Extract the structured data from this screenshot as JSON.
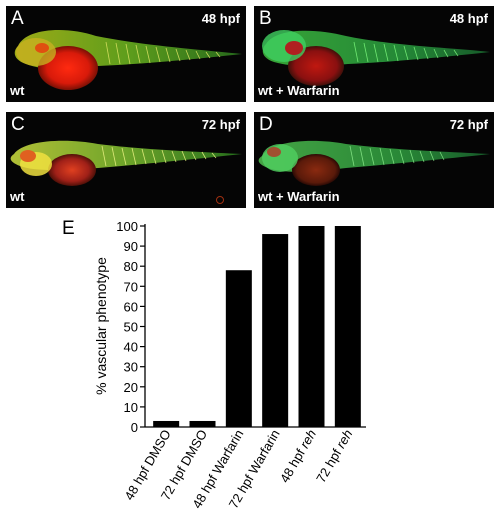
{
  "panels": [
    {
      "letter": "A",
      "time": "48 hpf",
      "condition": "wt",
      "fish": "fish-wt-48",
      "bg": "#050505"
    },
    {
      "letter": "B",
      "time": "48 hpf",
      "condition": "wt + Warfarin",
      "fish": "fish-warfarin-48",
      "bg": "#050505"
    },
    {
      "letter": "C",
      "time": "72 hpf",
      "condition": "wt",
      "fish": "fish-wt-72",
      "bg": "#050505"
    },
    {
      "letter": "D",
      "time": "72 hpf",
      "condition": "wt + Warfarin",
      "fish": "fish-warfarin-72",
      "bg": "#050505"
    }
  ],
  "chart_label": "E",
  "chart_data": {
    "type": "bar",
    "categories": [
      "48 hpf DMSO",
      "72 hpf DMSO",
      "48 hpf Warfarin",
      "72 hpf Warfarin",
      "48 hpf reh",
      "72 hpf reh"
    ],
    "category_parts": [
      {
        "pre": "48 hpf DMSO",
        "italic": ""
      },
      {
        "pre": "72 hpf DMSO",
        "italic": ""
      },
      {
        "pre": "48 hpf Warfarin",
        "italic": ""
      },
      {
        "pre": "72 hpf Warfarin",
        "italic": ""
      },
      {
        "pre": "48 hpf ",
        "italic": "reh"
      },
      {
        "pre": "72 hpf ",
        "italic": "reh"
      }
    ],
    "values": [
      3,
      3,
      78,
      96,
      100,
      100
    ],
    "ylabel": "% vascular phenotype",
    "ylim": [
      0,
      100
    ],
    "yticks": [
      0,
      10,
      20,
      30,
      40,
      50,
      60,
      70,
      80,
      90,
      100
    ],
    "bar_color": "#000000",
    "grid": false
  }
}
